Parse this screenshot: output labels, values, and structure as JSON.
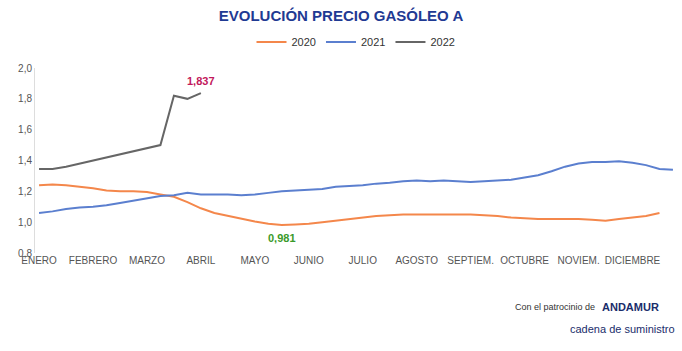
{
  "chart_data": {
    "type": "line",
    "title": "EVOLUCIÓN PRECIO GASÓLEO A",
    "categories": [
      "ENERO",
      null,
      null,
      null,
      "FEBRERO",
      null,
      null,
      null,
      "MARZO",
      null,
      null,
      null,
      "ABRIL",
      null,
      null,
      null,
      "MAYO",
      null,
      null,
      null,
      "JUNIO",
      null,
      null,
      null,
      "JULIO",
      null,
      null,
      null,
      "AGOSTO",
      null,
      null,
      null,
      "SEPTIEM.",
      null,
      null,
      null,
      "OCTUBRE",
      null,
      null,
      null,
      "NOVIEM.",
      null,
      null,
      null,
      "DICIEMBRE",
      null,
      null,
      null
    ],
    "series": [
      {
        "name": "2020",
        "color": "#f4874b",
        "values": [
          1.24,
          1.245,
          1.24,
          1.23,
          1.22,
          1.205,
          1.2,
          1.2,
          1.195,
          1.18,
          1.165,
          1.13,
          1.09,
          1.06,
          1.04,
          1.02,
          1.005,
          0.99,
          0.981,
          0.985,
          0.99,
          1.0,
          1.01,
          1.02,
          1.03,
          1.04,
          1.045,
          1.05,
          1.05,
          1.05,
          1.05,
          1.05,
          1.05,
          1.045,
          1.04,
          1.03,
          1.025,
          1.02,
          1.02,
          1.02,
          1.02,
          1.015,
          1.01,
          1.02,
          1.03,
          1.04,
          1.06,
          null
        ]
      },
      {
        "name": "2021",
        "color": "#5b7fcf",
        "values": [
          1.06,
          1.07,
          1.085,
          1.095,
          1.1,
          1.11,
          1.125,
          1.14,
          1.155,
          1.17,
          1.175,
          1.19,
          1.18,
          1.18,
          1.18,
          1.175,
          1.18,
          1.19,
          1.2,
          1.205,
          1.21,
          1.215,
          1.23,
          1.235,
          1.24,
          1.25,
          1.255,
          1.265,
          1.27,
          1.265,
          1.27,
          1.265,
          1.26,
          1.265,
          1.27,
          1.275,
          1.29,
          1.305,
          1.33,
          1.36,
          1.38,
          1.39,
          1.39,
          1.395,
          1.385,
          1.37,
          1.345,
          1.34
        ]
      },
      {
        "name": "2022",
        "color": "#666666",
        "values": [
          1.345,
          1.345,
          1.36,
          1.38,
          1.4,
          1.42,
          1.44,
          1.46,
          1.48,
          1.5,
          1.82,
          1.8,
          1.837,
          null,
          null,
          null,
          null,
          null,
          null,
          null,
          null,
          null,
          null,
          null,
          null,
          null,
          null,
          null,
          null,
          null,
          null,
          null,
          null,
          null,
          null,
          null,
          null,
          null,
          null,
          null,
          null,
          null,
          null,
          null,
          null,
          null,
          null,
          null
        ]
      }
    ],
    "ylim": [
      0.8,
      2.0
    ],
    "yticks": [
      {
        "value": 0.8,
        "label": "0,8"
      },
      {
        "value": 1.0,
        "label": "1,0"
      },
      {
        "value": 1.2,
        "label": "1,2"
      },
      {
        "value": 1.4,
        "label": "1,4"
      },
      {
        "value": 1.6,
        "label": "1,6"
      },
      {
        "value": 1.8,
        "label": "1,8"
      },
      {
        "value": 2.0,
        "label": "2,0"
      }
    ],
    "grid": false,
    "legend": "top",
    "annotations": [
      {
        "text": "1,837",
        "x": 12,
        "y": 1.837,
        "color": "#c2185b"
      },
      {
        "text": "0,981",
        "x": 18,
        "y": 0.981,
        "color": "#3a9a2a"
      }
    ],
    "footer": [
      "Con el patrocinio de",
      "ANDAMUR",
      "cadena de suministro"
    ]
  }
}
